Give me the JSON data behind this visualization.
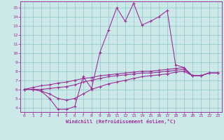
{
  "title": "",
  "xlabel": "Windchill (Refroidissement éolien,°C)",
  "ylabel": "",
  "xlim": [
    -0.5,
    23.5
  ],
  "ylim": [
    3.5,
    15.7
  ],
  "bg_color": "#cce8e8",
  "grid_color": "#99cccc",
  "line_color": "#993399",
  "axis_label_color": "#993399",
  "x_ticks": [
    0,
    1,
    2,
    3,
    4,
    5,
    6,
    7,
    8,
    9,
    10,
    11,
    12,
    13,
    14,
    15,
    16,
    17,
    18,
    19,
    20,
    21,
    22,
    23
  ],
  "y_ticks": [
    4,
    5,
    6,
    7,
    8,
    9,
    10,
    11,
    12,
    13,
    14,
    15
  ],
  "lines": [
    [
      6.0,
      6.0,
      5.8,
      5.0,
      3.8,
      3.8,
      4.1,
      7.4,
      6.1,
      10.1,
      12.5,
      15.0,
      13.5,
      15.5,
      13.1,
      13.5,
      14.0,
      14.7,
      8.7,
      8.4,
      7.5,
      7.5,
      7.8,
      7.8
    ],
    [
      6.0,
      6.0,
      6.0,
      6.1,
      6.2,
      6.3,
      6.5,
      6.8,
      7.0,
      7.2,
      7.4,
      7.5,
      7.6,
      7.7,
      7.8,
      7.8,
      7.9,
      8.0,
      8.1,
      8.2,
      7.5,
      7.5,
      7.8,
      7.8
    ],
    [
      6.0,
      6.0,
      5.8,
      5.5,
      5.0,
      4.8,
      5.0,
      5.5,
      6.0,
      6.3,
      6.6,
      6.8,
      7.0,
      7.2,
      7.4,
      7.5,
      7.6,
      7.7,
      7.9,
      8.0,
      7.5,
      7.5,
      7.8,
      7.8
    ],
    [
      6.0,
      6.2,
      6.4,
      6.5,
      6.7,
      6.8,
      7.0,
      7.2,
      7.3,
      7.5,
      7.6,
      7.7,
      7.8,
      7.9,
      8.0,
      8.0,
      8.1,
      8.2,
      8.3,
      8.4,
      7.5,
      7.5,
      7.8,
      7.8
    ]
  ]
}
